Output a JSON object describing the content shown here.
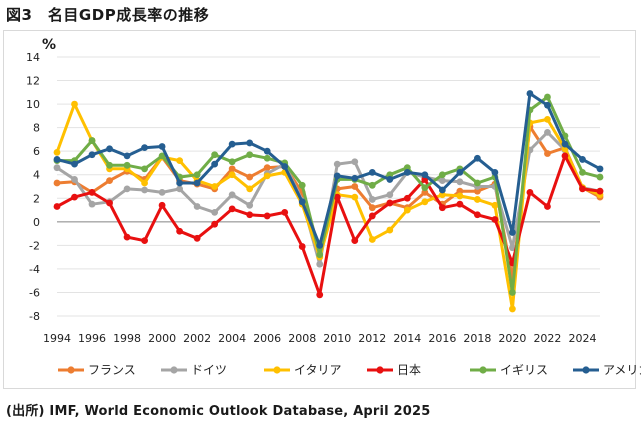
{
  "figure_title": "図3　名目GDP成長率の推移",
  "source_note": "(出所) IMF, World Economic Outlook Database, April 2025",
  "colors": {
    "france": "#ed7d31",
    "germany": "#a5a5a5",
    "italy": "#ffc000",
    "japan": "#e81010",
    "uk": "#70ad47",
    "usa": "#255e91"
  },
  "chart_data": {
    "type": "line",
    "title": "",
    "xlabel": "",
    "ylabel": "%",
    "ylim": [
      -8,
      14
    ],
    "yticks": [
      -8,
      -6,
      -4,
      -2,
      0,
      2,
      4,
      6,
      8,
      10,
      12,
      14
    ],
    "xlim": [
      1994,
      2025
    ],
    "xticks": [
      1994,
      1996,
      1998,
      2000,
      2002,
      2004,
      2006,
      2008,
      2010,
      2012,
      2014,
      2016,
      2018,
      2020,
      2022,
      2024
    ],
    "grid": true,
    "legend_position": "bottom",
    "x": [
      1994,
      1995,
      1996,
      1997,
      1998,
      1999,
      2000,
      2001,
      2002,
      2003,
      2004,
      2005,
      2006,
      2007,
      2008,
      2009,
      2010,
      2011,
      2012,
      2013,
      2014,
      2015,
      2016,
      2017,
      2018,
      2019,
      2020,
      2021,
      2022,
      2023,
      2024,
      2025
    ],
    "series": [
      {
        "name": "フランス",
        "color_key": "france",
        "values": [
          3.3,
          3.4,
          2.5,
          3.5,
          4.3,
          3.6,
          5.5,
          3.5,
          3.2,
          2.8,
          4.5,
          3.8,
          4.6,
          4.7,
          2.5,
          -2.4,
          2.8,
          3.0,
          1.2,
          1.6,
          1.2,
          2.5,
          1.5,
          2.6,
          2.6,
          3.2,
          -4.8,
          8.1,
          5.8,
          6.3,
          2.9,
          2.1
        ]
      },
      {
        "name": "ドイツ",
        "color_key": "germany",
        "values": [
          4.6,
          3.6,
          1.5,
          1.7,
          2.8,
          2.7,
          2.5,
          2.8,
          1.3,
          0.8,
          2.3,
          1.4,
          4.1,
          4.9,
          1.8,
          -3.6,
          4.9,
          5.1,
          1.9,
          2.3,
          4.2,
          3.8,
          3.5,
          3.4,
          3.0,
          3.0,
          -2.2,
          6.1,
          7.6,
          6.1,
          2.9,
          2.6
        ]
      },
      {
        "name": "イタリア",
        "color_key": "italy",
        "values": [
          5.9,
          10.0,
          6.9,
          4.5,
          4.5,
          3.3,
          5.5,
          5.2,
          3.5,
          3.0,
          4.0,
          2.8,
          3.9,
          4.2,
          1.5,
          -3.0,
          2.3,
          2.1,
          -1.5,
          -0.7,
          1.0,
          1.7,
          2.3,
          2.2,
          1.9,
          1.4,
          -7.4,
          8.4,
          8.7,
          6.2,
          2.9,
          2.3
        ]
      },
      {
        "name": "日本",
        "color_key": "japan",
        "values": [
          1.3,
          2.1,
          2.5,
          1.6,
          -1.3,
          -1.6,
          1.4,
          -0.8,
          -1.4,
          -0.2,
          1.1,
          0.6,
          0.5,
          0.8,
          -2.1,
          -6.2,
          2.1,
          -1.6,
          0.5,
          1.6,
          2.0,
          3.6,
          1.2,
          1.5,
          0.6,
          0.2,
          -3.5,
          2.5,
          1.3,
          5.6,
          2.8,
          2.6
        ]
      },
      {
        "name": "イギリス",
        "color_key": "uk",
        "values": [
          5.2,
          5.2,
          6.9,
          4.8,
          4.8,
          4.5,
          5.6,
          3.8,
          4.0,
          5.7,
          5.1,
          5.7,
          5.4,
          5.0,
          3.1,
          -2.8,
          3.6,
          3.6,
          3.1,
          4.0,
          4.6,
          2.9,
          4.0,
          4.5,
          3.3,
          3.8,
          -6.0,
          9.5,
          10.6,
          7.3,
          4.2,
          3.8
        ]
      },
      {
        "name": "アメリカ",
        "color_key": "usa",
        "values": [
          5.3,
          4.9,
          5.7,
          6.2,
          5.6,
          6.3,
          6.4,
          3.3,
          3.3,
          4.9,
          6.6,
          6.7,
          6.0,
          4.7,
          1.7,
          -2.0,
          3.9,
          3.7,
          4.2,
          3.6,
          4.2,
          4.0,
          2.7,
          4.2,
          5.4,
          4.2,
          -0.9,
          10.9,
          9.9,
          6.6,
          5.3,
          4.5
        ]
      }
    ]
  }
}
